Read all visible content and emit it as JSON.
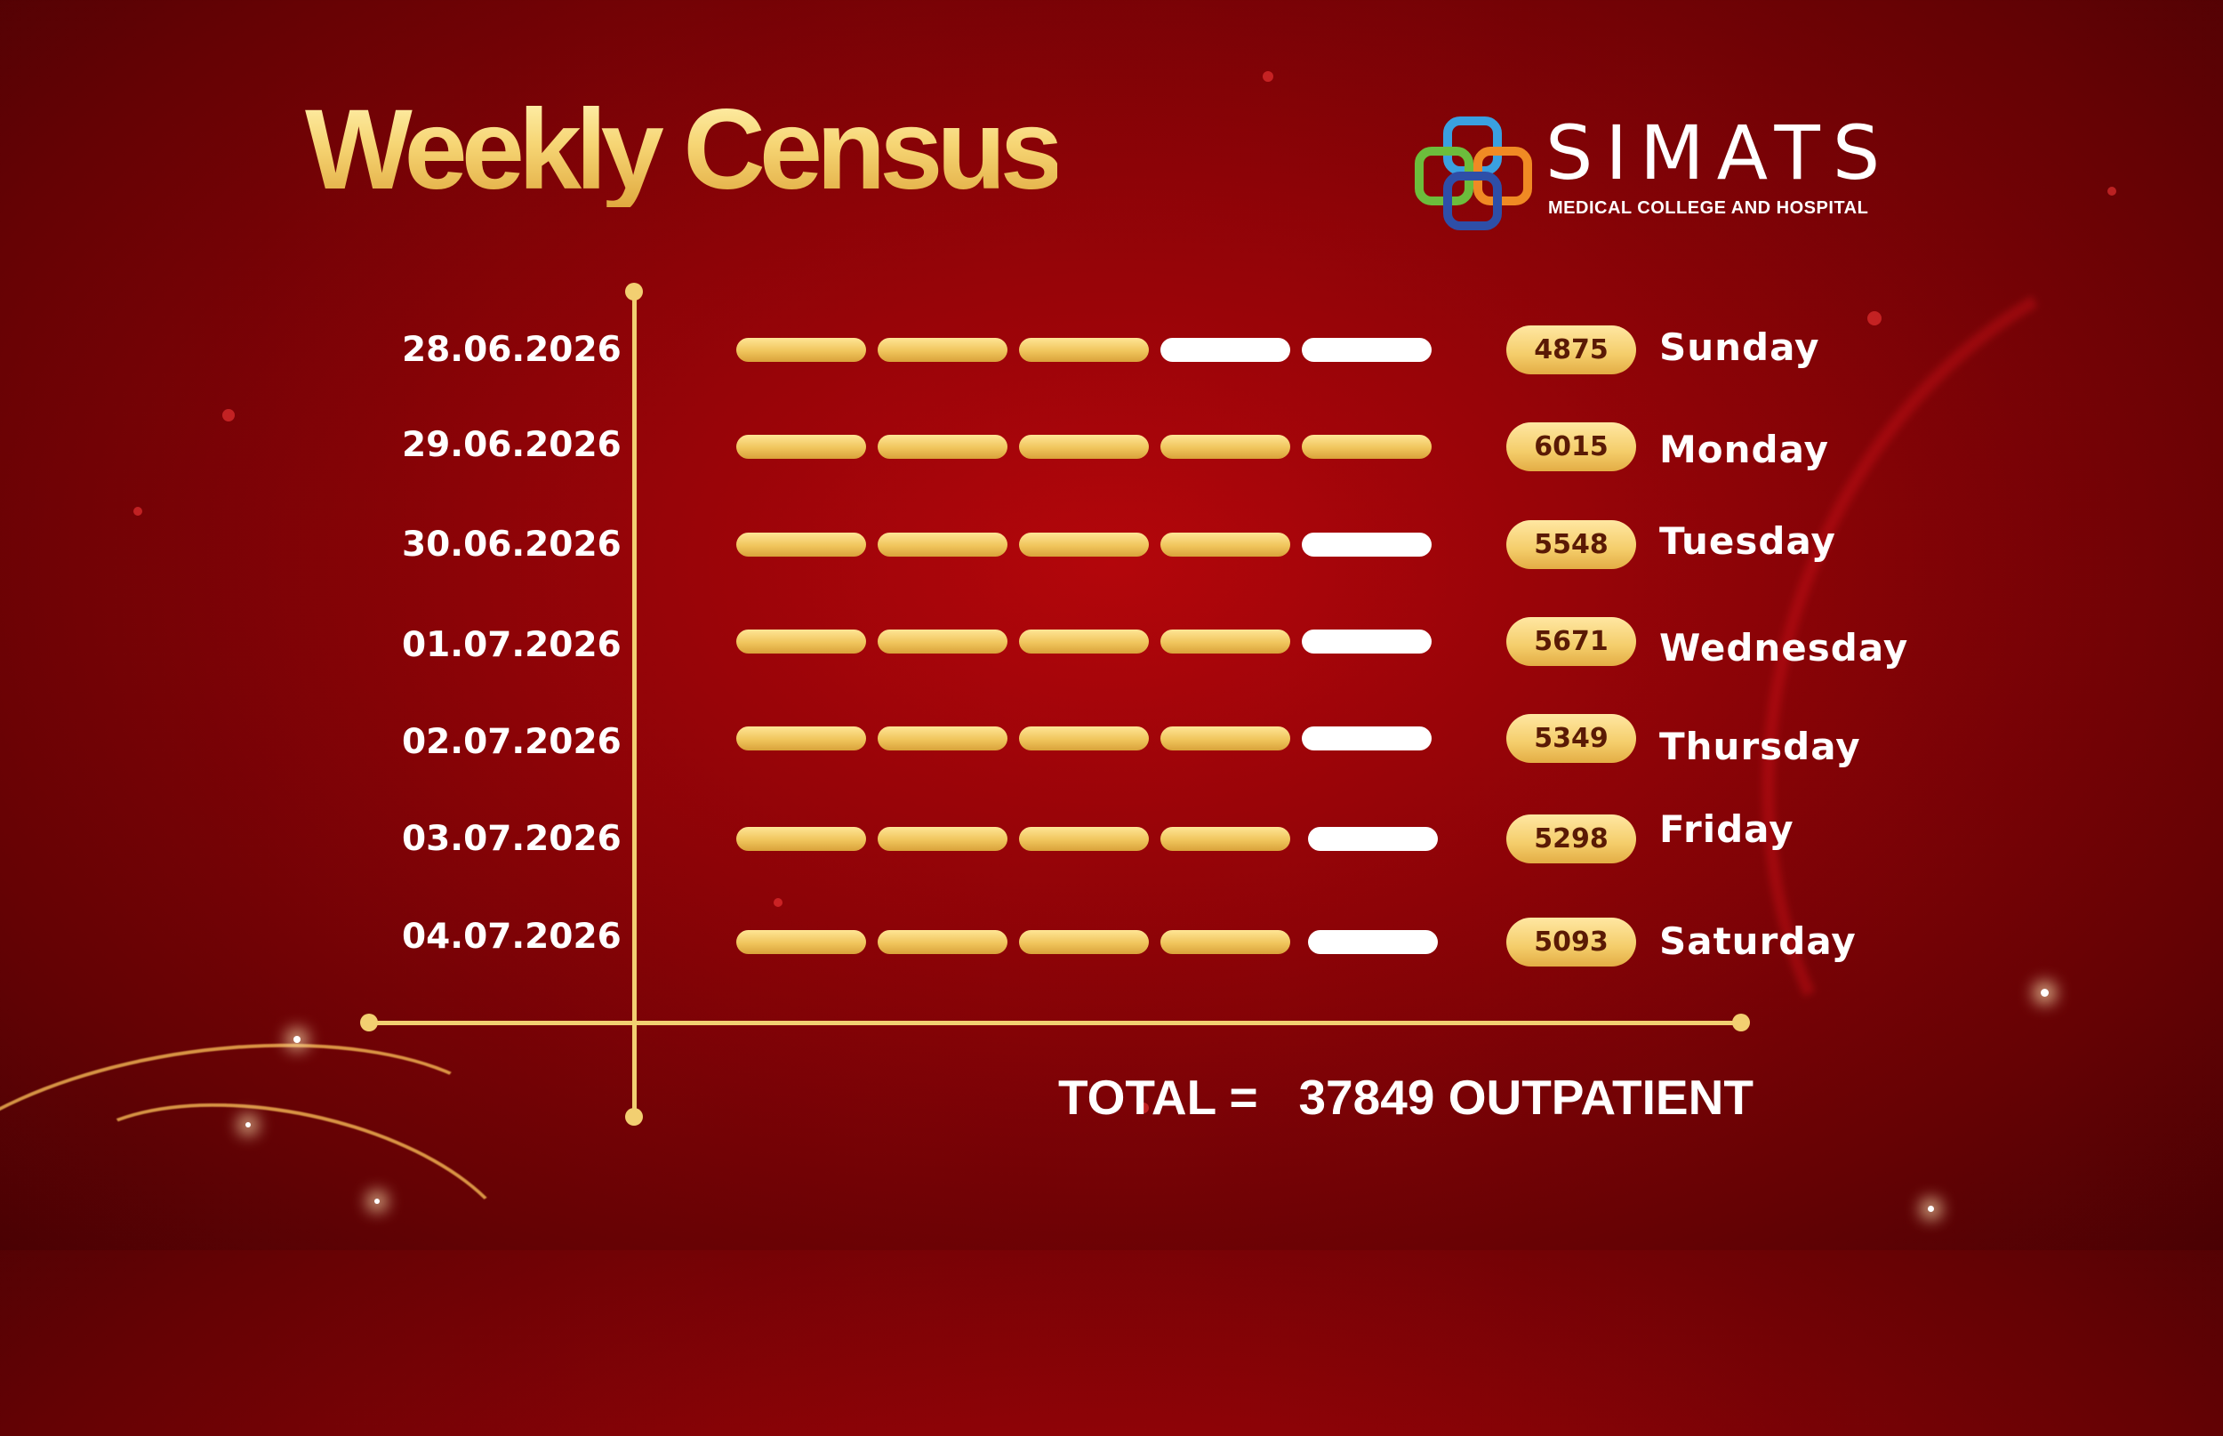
{
  "title": "Weekly Census",
  "logo": {
    "name": "SIMATS",
    "subtitle": "MEDICAL COLLEGE AND HOSPITAL"
  },
  "total": {
    "label": "TOTAL =",
    "value": "37849",
    "unit": "OUTPATIENT"
  },
  "colors": {
    "accent_gold": "#f2cf71",
    "background": "#8d0307",
    "segment_empty": "#ffffff",
    "pill_text": "#5a1a05"
  },
  "chart_data": {
    "type": "bar",
    "segments_per_row": 5,
    "rows": [
      {
        "date": "28.06.2026",
        "value": 4875,
        "day": "Sunday",
        "filled_segments": 3
      },
      {
        "date": "29.06.2026",
        "value": 6015,
        "day": "Monday",
        "filled_segments": 5
      },
      {
        "date": "30.06.2026",
        "value": 5548,
        "day": "Tuesday",
        "filled_segments": 4
      },
      {
        "date": "01.07.2026",
        "value": 5671,
        "day": "Wednesday",
        "filled_segments": 4
      },
      {
        "date": "02.07.2026",
        "value": 5349,
        "day": "Thursday",
        "filled_segments": 4
      },
      {
        "date": "03.07.2026",
        "value": 5298,
        "day": "Friday",
        "filled_segments": 4
      },
      {
        "date": "04.07.2026",
        "value": 5093,
        "day": "Saturday",
        "filled_segments": 4
      }
    ]
  }
}
